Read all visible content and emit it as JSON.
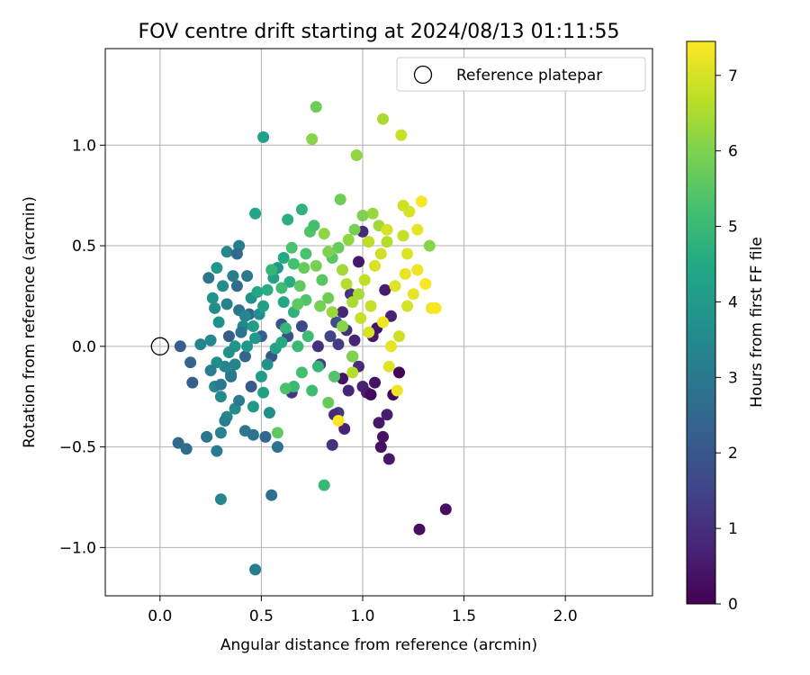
{
  "chart_data": {
    "type": "scatter",
    "title": "FOV centre drift starting at 2024/08/13 01:11:55",
    "xlabel": "Angular distance from reference (arcmin)",
    "ylabel": "Rotation from reference (arcmin)",
    "xlim": [
      -0.27,
      2.43
    ],
    "ylim": [
      -1.24,
      1.48
    ],
    "xticks": [
      0.0,
      0.5,
      1.0,
      1.5,
      2.0
    ],
    "xtick_labels": [
      "0.0",
      "0.5",
      "1.0",
      "1.5",
      "2.0"
    ],
    "yticks": [
      -1.0,
      -0.5,
      0.0,
      0.5,
      1.0
    ],
    "ytick_labels": [
      "−1.0",
      "−0.5",
      "0.0",
      "0.5",
      "1.0"
    ],
    "grid": true,
    "legend": {
      "position": "top-right",
      "entries": [
        {
          "label": "Reference platepar",
          "marker": "open-circle"
        }
      ]
    },
    "reference_point": {
      "x": 0.0,
      "y": 0.0
    },
    "colorbar": {
      "label": "Hours from first FF file",
      "colormap": "viridis",
      "range": [
        0,
        7.45
      ],
      "ticks": [
        0,
        1,
        2,
        3,
        4,
        5,
        6,
        7
      ],
      "tick_labels": [
        "0",
        "1",
        "2",
        "3",
        "4",
        "5",
        "6",
        "7"
      ]
    },
    "points": [
      {
        "x": 1.41,
        "y": -0.81,
        "h": 0.3
      },
      {
        "x": 1.28,
        "y": -0.91,
        "h": 0.3
      },
      {
        "x": 1.18,
        "y": -0.13,
        "h": 0.1
      },
      {
        "x": 1.13,
        "y": -0.56,
        "h": 0.5
      },
      {
        "x": 1.1,
        "y": -0.45,
        "h": 0.4
      },
      {
        "x": 1.09,
        "y": -0.5,
        "h": 0.3
      },
      {
        "x": 1.12,
        "y": -0.34,
        "h": 0.6
      },
      {
        "x": 1.08,
        "y": -0.38,
        "h": 0.5
      },
      {
        "x": 1.15,
        "y": -0.24,
        "h": 0.2
      },
      {
        "x": 1.06,
        "y": -0.18,
        "h": 0.4
      },
      {
        "x": 1.0,
        "y": -0.2,
        "h": 0.7
      },
      {
        "x": 0.98,
        "y": -0.1,
        "h": 0.9
      },
      {
        "x": 0.95,
        "y": -0.05,
        "h": 0.3
      },
      {
        "x": 1.05,
        "y": 0.05,
        "h": 0.5
      },
      {
        "x": 1.02,
        "y": -0.23,
        "h": 0.6
      },
      {
        "x": 1.04,
        "y": -0.24,
        "h": 0.2
      },
      {
        "x": 0.93,
        "y": -0.22,
        "h": 0.8
      },
      {
        "x": 0.92,
        "y": 0.08,
        "h": 1.0
      },
      {
        "x": 0.88,
        "y": -0.33,
        "h": 1.2
      },
      {
        "x": 0.86,
        "y": -0.34,
        "h": 0.9
      },
      {
        "x": 0.91,
        "y": -0.41,
        "h": 0.7
      },
      {
        "x": 0.85,
        "y": -0.49,
        "h": 1.1
      },
      {
        "x": 0.9,
        "y": -0.16,
        "h": 0.4
      },
      {
        "x": 0.96,
        "y": 0.03,
        "h": 0.8
      },
      {
        "x": 0.88,
        "y": 0.01,
        "h": 1.3
      },
      {
        "x": 0.84,
        "y": 0.05,
        "h": 1.5
      },
      {
        "x": 0.78,
        "y": 0.0,
        "h": 1.0
      },
      {
        "x": 0.79,
        "y": -0.09,
        "h": 1.4
      },
      {
        "x": 0.7,
        "y": 0.1,
        "h": 1.6
      },
      {
        "x": 0.65,
        "y": -0.23,
        "h": 1.2
      },
      {
        "x": 0.63,
        "y": 0.05,
        "h": 1.8
      },
      {
        "x": 0.6,
        "y": 0.11,
        "h": 1.9
      },
      {
        "x": 1.11,
        "y": 0.28,
        "h": 0.6
      },
      {
        "x": 1.14,
        "y": 0.15,
        "h": 0.7
      },
      {
        "x": 1.07,
        "y": 0.09,
        "h": 0.4
      },
      {
        "x": 1.0,
        "y": 0.57,
        "h": 0.9
      },
      {
        "x": 0.94,
        "y": 0.26,
        "h": 1.1
      },
      {
        "x": 0.9,
        "y": 0.17,
        "h": 0.8
      },
      {
        "x": 0.98,
        "y": 0.42,
        "h": 0.5
      },
      {
        "x": 0.87,
        "y": 0.12,
        "h": 1.7
      },
      {
        "x": 0.55,
        "y": -0.05,
        "h": 2.0
      },
      {
        "x": 0.5,
        "y": 0.05,
        "h": 2.3
      },
      {
        "x": 0.45,
        "y": -0.2,
        "h": 2.1
      },
      {
        "x": 0.44,
        "y": 0.16,
        "h": 2.5
      },
      {
        "x": 0.42,
        "y": -0.05,
        "h": 2.4
      },
      {
        "x": 0.38,
        "y": 0.3,
        "h": 2.6
      },
      {
        "x": 0.34,
        "y": 0.05,
        "h": 2.2
      },
      {
        "x": 0.52,
        "y": -0.45,
        "h": 2.5
      },
      {
        "x": 0.58,
        "y": -0.5,
        "h": 2.8
      },
      {
        "x": 0.55,
        "y": -0.74,
        "h": 2.7
      },
      {
        "x": 0.3,
        "y": -0.76,
        "h": 3.4
      },
      {
        "x": 0.47,
        "y": -1.11,
        "h": 3.2
      },
      {
        "x": 0.1,
        "y": 0.0,
        "h": 2.2
      },
      {
        "x": 0.15,
        "y": -0.08,
        "h": 2.4
      },
      {
        "x": 0.16,
        "y": -0.18,
        "h": 2.3
      },
      {
        "x": 0.09,
        "y": -0.48,
        "h": 2.5
      },
      {
        "x": 0.13,
        "y": -0.51,
        "h": 2.6
      },
      {
        "x": 0.23,
        "y": -0.45,
        "h": 2.9
      },
      {
        "x": 0.28,
        "y": -0.52,
        "h": 3.1
      },
      {
        "x": 0.3,
        "y": -0.43,
        "h": 3.3
      },
      {
        "x": 0.42,
        "y": -0.42,
        "h": 3.0
      },
      {
        "x": 0.46,
        "y": -0.44,
        "h": 2.8
      },
      {
        "x": 0.33,
        "y": -0.35,
        "h": 3.5
      },
      {
        "x": 0.32,
        "y": -0.37,
        "h": 3.2
      },
      {
        "x": 0.37,
        "y": -0.31,
        "h": 3.6
      },
      {
        "x": 0.39,
        "y": -0.27,
        "h": 3.1
      },
      {
        "x": 0.27,
        "y": -0.2,
        "h": 3.4
      },
      {
        "x": 0.3,
        "y": -0.19,
        "h": 3.0
      },
      {
        "x": 0.35,
        "y": -0.15,
        "h": 2.7
      },
      {
        "x": 0.2,
        "y": 0.01,
        "h": 3.3
      },
      {
        "x": 0.25,
        "y": 0.03,
        "h": 3.5
      },
      {
        "x": 0.29,
        "y": 0.12,
        "h": 3.7
      },
      {
        "x": 0.27,
        "y": 0.19,
        "h": 3.6
      },
      {
        "x": 0.26,
        "y": 0.24,
        "h": 3.8
      },
      {
        "x": 0.24,
        "y": 0.34,
        "h": 2.9
      },
      {
        "x": 0.28,
        "y": 0.39,
        "h": 3.9
      },
      {
        "x": 0.33,
        "y": 0.47,
        "h": 3.4
      },
      {
        "x": 0.39,
        "y": 0.5,
        "h": 3.1
      },
      {
        "x": 0.38,
        "y": 0.46,
        "h": 2.6
      },
      {
        "x": 0.36,
        "y": 0.35,
        "h": 3.2
      },
      {
        "x": 0.43,
        "y": 0.35,
        "h": 3.0
      },
      {
        "x": 0.31,
        "y": 0.3,
        "h": 3.6
      },
      {
        "x": 0.33,
        "y": 0.21,
        "h": 3.3
      },
      {
        "x": 0.39,
        "y": 0.18,
        "h": 2.9
      },
      {
        "x": 0.42,
        "y": 0.15,
        "h": 3.4
      },
      {
        "x": 0.45,
        "y": 0.24,
        "h": 3.8
      },
      {
        "x": 0.41,
        "y": 0.1,
        "h": 3.5
      },
      {
        "x": 0.4,
        "y": 0.07,
        "h": 2.8
      },
      {
        "x": 0.37,
        "y": 0.0,
        "h": 3.9
      },
      {
        "x": 0.34,
        "y": -0.03,
        "h": 3.7
      },
      {
        "x": 0.37,
        "y": -0.09,
        "h": 3.3
      },
      {
        "x": 0.35,
        "y": -0.14,
        "h": 3.0
      },
      {
        "x": 0.32,
        "y": -0.1,
        "h": 3.4
      },
      {
        "x": 0.28,
        "y": -0.08,
        "h": 3.6
      },
      {
        "x": 0.25,
        "y": -0.12,
        "h": 3.2
      },
      {
        "x": 0.3,
        "y": -0.25,
        "h": 3.5
      },
      {
        "x": 0.46,
        "y": -0.3,
        "h": 4.0
      },
      {
        "x": 0.51,
        "y": -0.23,
        "h": 4.2
      },
      {
        "x": 0.54,
        "y": -0.33,
        "h": 3.6
      },
      {
        "x": 0.5,
        "y": -0.15,
        "h": 4.1
      },
      {
        "x": 0.53,
        "y": -0.09,
        "h": 3.8
      },
      {
        "x": 0.57,
        "y": -0.01,
        "h": 4.3
      },
      {
        "x": 0.6,
        "y": 0.02,
        "h": 4.5
      },
      {
        "x": 0.47,
        "y": 0.04,
        "h": 4.0
      },
      {
        "x": 0.43,
        "y": 0.0,
        "h": 3.9
      },
      {
        "x": 0.46,
        "y": 0.1,
        "h": 4.1
      },
      {
        "x": 0.49,
        "y": 0.16,
        "h": 3.7
      },
      {
        "x": 0.51,
        "y": 0.2,
        "h": 4.2
      },
      {
        "x": 0.48,
        "y": 0.27,
        "h": 4.4
      },
      {
        "x": 0.53,
        "y": 0.28,
        "h": 4.6
      },
      {
        "x": 0.56,
        "y": 0.34,
        "h": 4.3
      },
      {
        "x": 0.58,
        "y": 0.39,
        "h": 4.0
      },
      {
        "x": 0.61,
        "y": 0.44,
        "h": 4.5
      },
      {
        "x": 0.47,
        "y": 0.66,
        "h": 4.4
      },
      {
        "x": 0.51,
        "y": 1.04,
        "h": 4.2
      },
      {
        "x": 0.63,
        "y": 0.63,
        "h": 4.7
      },
      {
        "x": 0.7,
        "y": 0.68,
        "h": 4.8
      },
      {
        "x": 0.64,
        "y": 0.32,
        "h": 4.6
      },
      {
        "x": 0.61,
        "y": 0.22,
        "h": 4.4
      },
      {
        "x": 0.66,
        "y": 0.17,
        "h": 4.8
      },
      {
        "x": 0.62,
        "y": 0.09,
        "h": 4.9
      },
      {
        "x": 0.68,
        "y": 0.0,
        "h": 5.0
      },
      {
        "x": 0.73,
        "y": 0.05,
        "h": 5.1
      },
      {
        "x": 0.78,
        "y": -0.1,
        "h": 4.9
      },
      {
        "x": 0.7,
        "y": -0.13,
        "h": 5.2
      },
      {
        "x": 0.66,
        "y": -0.2,
        "h": 5.0
      },
      {
        "x": 0.62,
        "y": -0.21,
        "h": 5.3
      },
      {
        "x": 0.75,
        "y": -0.22,
        "h": 5.1
      },
      {
        "x": 0.81,
        "y": -0.69,
        "h": 5.0
      },
      {
        "x": 0.58,
        "y": -0.43,
        "h": 5.6
      },
      {
        "x": 0.83,
        "y": -0.28,
        "h": 5.7
      },
      {
        "x": 0.86,
        "y": -0.15,
        "h": 5.4
      },
      {
        "x": 0.95,
        "y": -0.05,
        "h": 6.0
      },
      {
        "x": 0.9,
        "y": 0.1,
        "h": 6.1
      },
      {
        "x": 0.83,
        "y": 0.24,
        "h": 5.8
      },
      {
        "x": 0.8,
        "y": 0.33,
        "h": 5.5
      },
      {
        "x": 0.77,
        "y": 0.4,
        "h": 5.9
      },
      {
        "x": 0.72,
        "y": 0.46,
        "h": 5.3
      },
      {
        "x": 0.66,
        "y": 0.41,
        "h": 5.2
      },
      {
        "x": 0.69,
        "y": 0.3,
        "h": 5.6
      },
      {
        "x": 0.74,
        "y": 0.57,
        "h": 5.4
      },
      {
        "x": 0.76,
        "y": 0.6,
        "h": 5.2
      },
      {
        "x": 0.71,
        "y": 0.39,
        "h": 5.7
      },
      {
        "x": 0.75,
        "y": 1.03,
        "h": 6.1
      },
      {
        "x": 0.77,
        "y": 1.19,
        "h": 5.8
      },
      {
        "x": 0.97,
        "y": 0.95,
        "h": 6.2
      },
      {
        "x": 1.1,
        "y": 1.13,
        "h": 6.5
      },
      {
        "x": 1.19,
        "y": 1.05,
        "h": 6.8
      },
      {
        "x": 1.2,
        "y": 0.7,
        "h": 6.9
      },
      {
        "x": 1.23,
        "y": 0.67,
        "h": 7.0
      },
      {
        "x": 1.29,
        "y": 0.72,
        "h": 7.4
      },
      {
        "x": 1.27,
        "y": 0.58,
        "h": 7.2
      },
      {
        "x": 1.33,
        "y": 0.5,
        "h": 6.1
      },
      {
        "x": 1.22,
        "y": 0.46,
        "h": 7.1
      },
      {
        "x": 1.27,
        "y": 0.38,
        "h": 7.3
      },
      {
        "x": 1.31,
        "y": 0.31,
        "h": 7.4
      },
      {
        "x": 1.25,
        "y": 0.26,
        "h": 7.2
      },
      {
        "x": 1.22,
        "y": 0.2,
        "h": 7.0
      },
      {
        "x": 1.34,
        "y": 0.19,
        "h": 7.3
      },
      {
        "x": 1.36,
        "y": 0.19,
        "h": 7.4
      },
      {
        "x": 1.18,
        "y": 0.05,
        "h": 6.9
      },
      {
        "x": 1.14,
        "y": 0.0,
        "h": 7.2
      },
      {
        "x": 1.1,
        "y": 0.12,
        "h": 7.3
      },
      {
        "x": 1.04,
        "y": 0.2,
        "h": 6.8
      },
      {
        "x": 0.98,
        "y": 0.26,
        "h": 6.5
      },
      {
        "x": 1.01,
        "y": 0.33,
        "h": 6.7
      },
      {
        "x": 1.06,
        "y": 0.4,
        "h": 7.0
      },
      {
        "x": 1.09,
        "y": 0.46,
        "h": 6.9
      },
      {
        "x": 1.12,
        "y": 0.52,
        "h": 6.6
      },
      {
        "x": 1.08,
        "y": 0.6,
        "h": 6.4
      },
      {
        "x": 1.05,
        "y": 0.66,
        "h": 6.3
      },
      {
        "x": 1.0,
        "y": 0.65,
        "h": 6.0
      },
      {
        "x": 0.96,
        "y": 0.58,
        "h": 5.9
      },
      {
        "x": 0.93,
        "y": 0.53,
        "h": 6.2
      },
      {
        "x": 0.88,
        "y": 0.49,
        "h": 5.7
      },
      {
        "x": 0.85,
        "y": 0.44,
        "h": 5.5
      },
      {
        "x": 0.9,
        "y": 0.38,
        "h": 6.4
      },
      {
        "x": 0.92,
        "y": 0.31,
        "h": 6.6
      },
      {
        "x": 0.95,
        "y": 0.22,
        "h": 6.5
      },
      {
        "x": 0.99,
        "y": 0.14,
        "h": 6.8
      },
      {
        "x": 1.03,
        "y": 0.07,
        "h": 7.0
      },
      {
        "x": 1.13,
        "y": -0.1,
        "h": 7.1
      },
      {
        "x": 1.17,
        "y": -0.22,
        "h": 7.3
      },
      {
        "x": 0.88,
        "y": -0.37,
        "h": 7.4
      },
      {
        "x": 0.95,
        "y": -0.13,
        "h": 6.6
      },
      {
        "x": 0.89,
        "y": 0.73,
        "h": 5.8
      },
      {
        "x": 0.81,
        "y": 0.56,
        "h": 6.2
      },
      {
        "x": 0.83,
        "y": 0.47,
        "h": 6.0
      },
      {
        "x": 0.85,
        "y": 0.17,
        "h": 6.3
      },
      {
        "x": 0.79,
        "y": 0.2,
        "h": 5.9
      },
      {
        "x": 1.21,
        "y": 0.36,
        "h": 7.2
      },
      {
        "x": 1.16,
        "y": 0.3,
        "h": 7.1
      },
      {
        "x": 1.2,
        "y": 0.55,
        "h": 6.8
      },
      {
        "x": 1.12,
        "y": 0.58,
        "h": 7.0
      },
      {
        "x": 1.03,
        "y": 0.52,
        "h": 6.7
      },
      {
        "x": 0.72,
        "y": 0.23,
        "h": 5.4
      },
      {
        "x": 0.68,
        "y": 0.21,
        "h": 5.6
      },
      {
        "x": 0.6,
        "y": 0.29,
        "h": 5.1
      },
      {
        "x": 0.55,
        "y": 0.38,
        "h": 4.9
      },
      {
        "x": 0.65,
        "y": 0.49,
        "h": 5.3
      }
    ]
  }
}
